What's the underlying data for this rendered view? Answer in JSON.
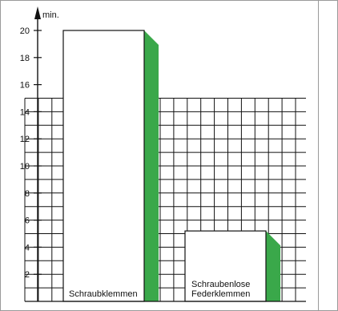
{
  "chart_data": {
    "type": "bar",
    "ylabel": "min.",
    "ylim": [
      0,
      20
    ],
    "yticks": [
      2,
      4,
      6,
      8,
      10,
      12,
      14,
      16,
      18,
      20
    ],
    "categories": [
      "Schraubklemmen",
      "Schraubenlose Federklemmen"
    ],
    "category_lines": [
      [
        "Schraubklemmen"
      ],
      [
        "Schraubenlose",
        "Federklemmen"
      ]
    ],
    "values": [
      20,
      5.2
    ],
    "grid_max": 15,
    "colors": {
      "bar_fill": "#ffffff",
      "bar_shadow": "#3aa84a",
      "grid": "#111111"
    }
  }
}
